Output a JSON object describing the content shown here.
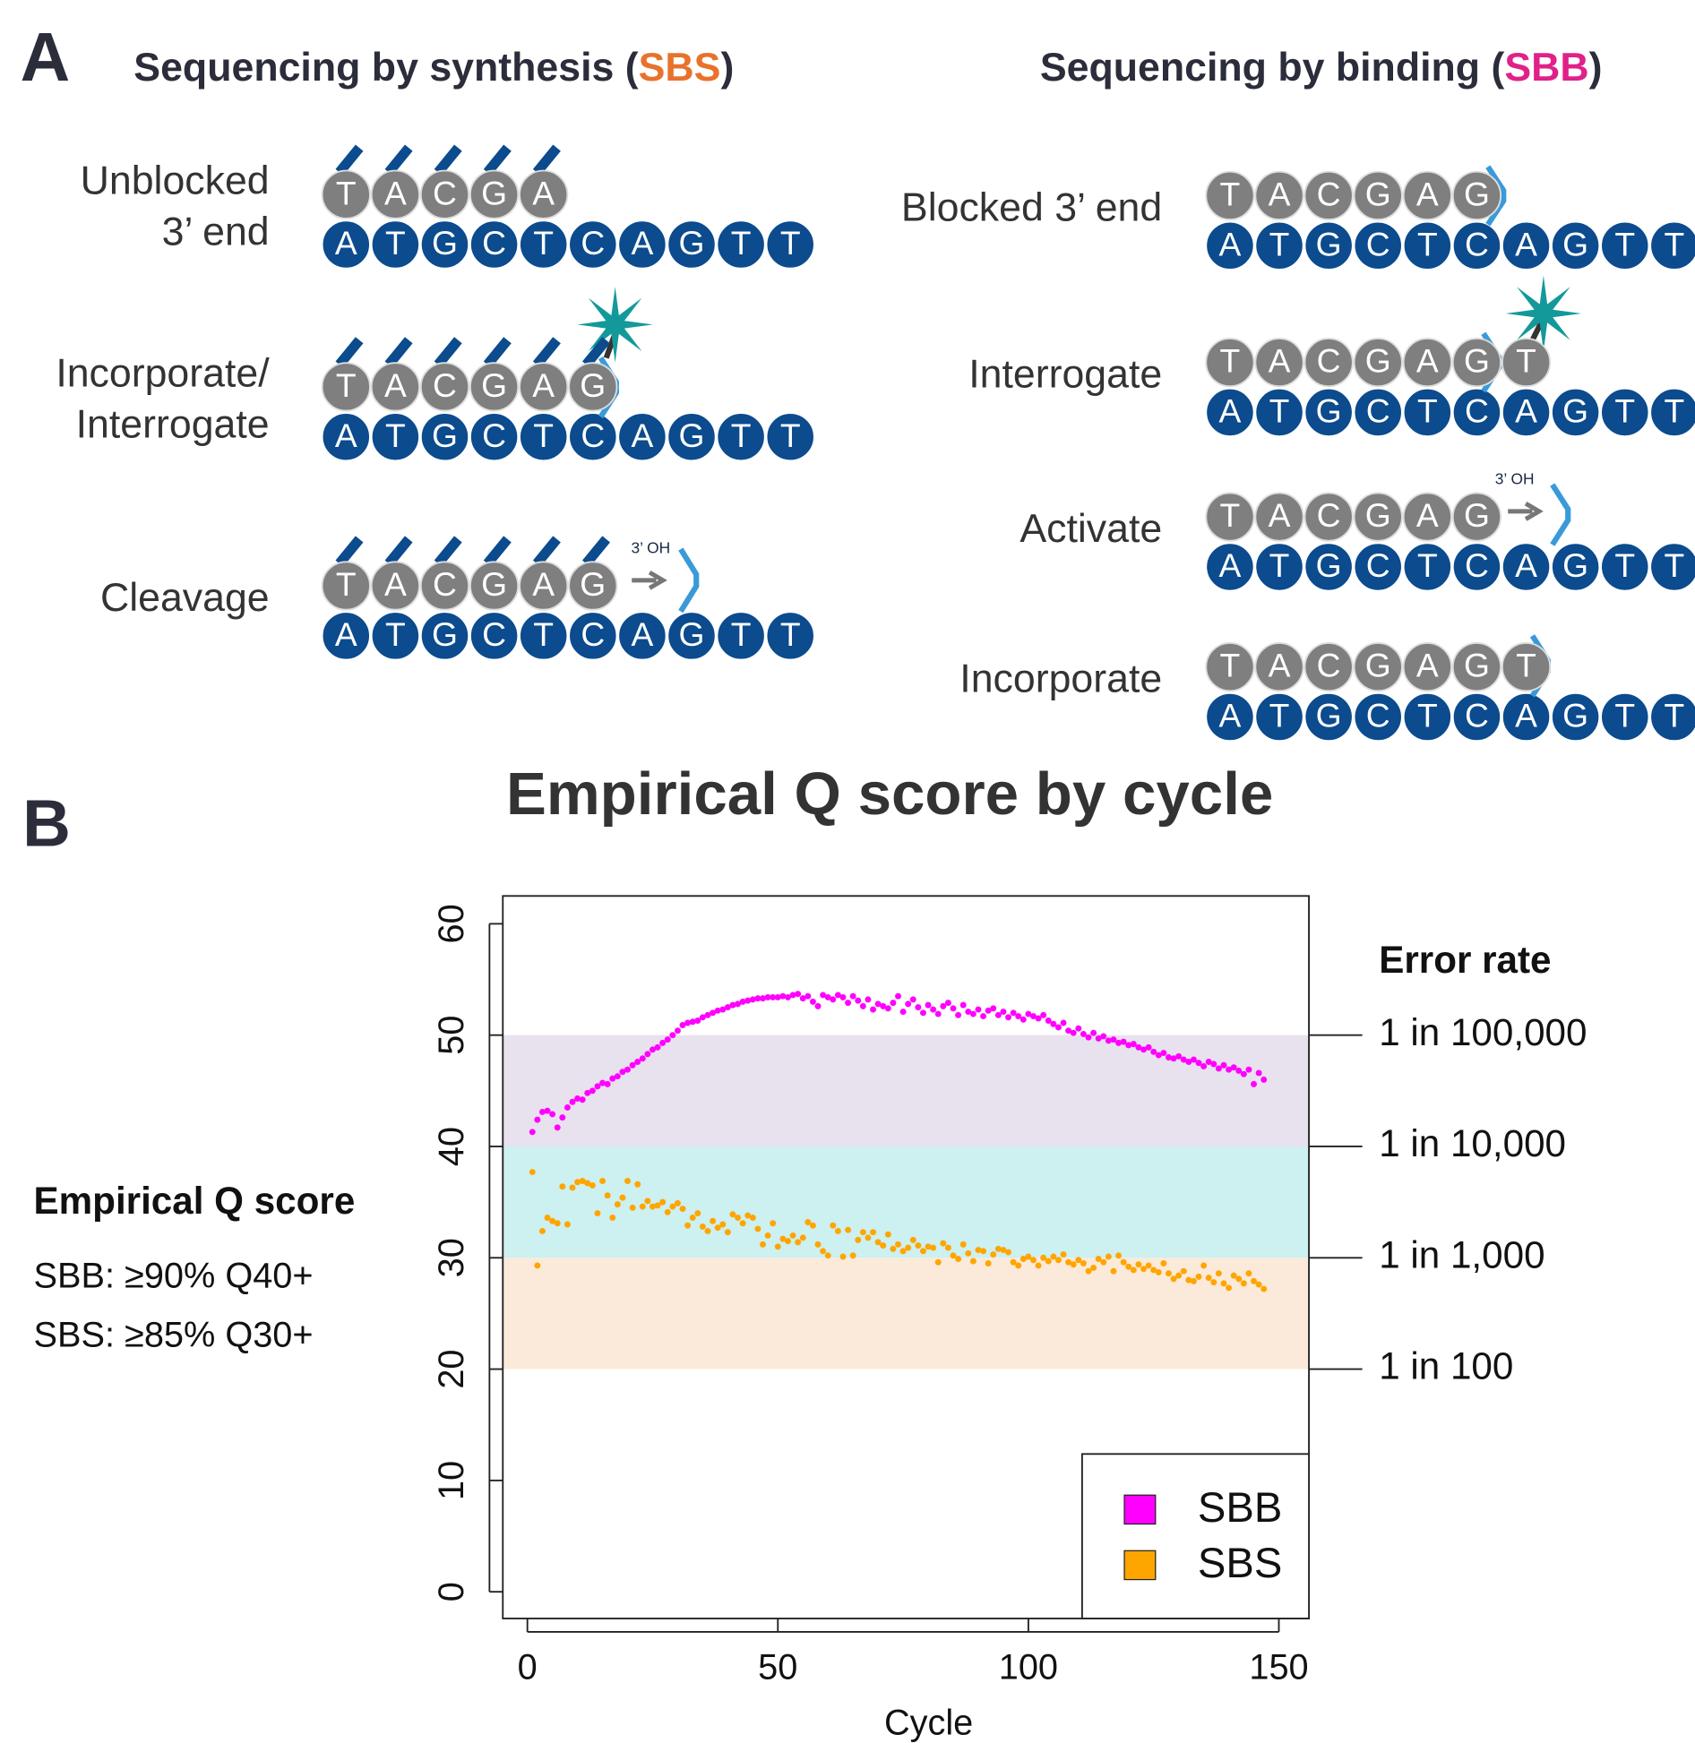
{
  "panel_a": {
    "label": "A",
    "sbs": {
      "heading": {
        "before": "Sequencing by synthesis (",
        "abbr": "SBS",
        "after": ")"
      },
      "steps": [
        {
          "label": [
            "Unblocked",
            "3’ end"
          ],
          "top": [
            "T",
            "A",
            "C",
            "G",
            "A"
          ],
          "bottom": [
            "A",
            "T",
            "G",
            "C",
            "T",
            "C",
            "A",
            "G",
            "T",
            "T"
          ]
        },
        {
          "label": [
            "Incorporate/",
            "Interrogate"
          ],
          "top": [
            "T",
            "A",
            "C",
            "G",
            "A",
            "G"
          ],
          "bottom": [
            "A",
            "T",
            "G",
            "C",
            "T",
            "C",
            "A",
            "G",
            "T",
            "T"
          ]
        },
        {
          "label": [
            "Cleavage"
          ],
          "top": [
            "T",
            "A",
            "C",
            "G",
            "A",
            "G"
          ],
          "bottom": [
            "A",
            "T",
            "G",
            "C",
            "T",
            "C",
            "A",
            "G",
            "T",
            "T"
          ],
          "oh": "3’ OH"
        }
      ]
    },
    "sbb": {
      "heading": {
        "before": "Sequencing by binding (",
        "abbr": "SBB",
        "after": ")"
      },
      "steps": [
        {
          "label": [
            "Blocked 3’ end"
          ],
          "top": [
            "T",
            "A",
            "C",
            "G",
            "A",
            "G"
          ],
          "bottom": [
            "A",
            "T",
            "G",
            "C",
            "T",
            "C",
            "A",
            "G",
            "T",
            "T"
          ]
        },
        {
          "label": [
            "Interrogate"
          ],
          "top": [
            "T",
            "A",
            "C",
            "G",
            "A",
            "G",
            "T"
          ],
          "bottom": [
            "A",
            "T",
            "G",
            "C",
            "T",
            "C",
            "A",
            "G",
            "T",
            "T"
          ]
        },
        {
          "label": [
            "Activate"
          ],
          "top": [
            "T",
            "A",
            "C",
            "G",
            "A",
            "G"
          ],
          "bottom": [
            "A",
            "T",
            "G",
            "C",
            "T",
            "C",
            "A",
            "G",
            "T",
            "T"
          ],
          "oh": "3’ OH"
        },
        {
          "label": [
            "Incorporate"
          ],
          "top": [
            "T",
            "A",
            "C",
            "G",
            "A",
            "G",
            "T"
          ],
          "bottom": [
            "A",
            "T",
            "G",
            "C",
            "T",
            "C",
            "A",
            "G",
            "T",
            "T"
          ]
        }
      ]
    }
  },
  "panel_b": {
    "label": "B",
    "note": {
      "title": "Empirical Q score",
      "lines": [
        "SBB: ≥90% Q40+",
        "SBS: ≥85% Q30+"
      ]
    }
  },
  "chart_data": {
    "type": "scatter",
    "title": "Empirical Q score by cycle",
    "x_label": "Cycle",
    "x": [
      1,
      2,
      3,
      4,
      5,
      6,
      7,
      8,
      9,
      10,
      11,
      12,
      13,
      14,
      15,
      16,
      17,
      18,
      19,
      20,
      21,
      22,
      23,
      24,
      25,
      26,
      27,
      28,
      29,
      30,
      31,
      32,
      33,
      34,
      35,
      36,
      37,
      38,
      39,
      40,
      41,
      42,
      43,
      44,
      45,
      46,
      47,
      48,
      49,
      50,
      51,
      52,
      53,
      54,
      55,
      56,
      57,
      58,
      59,
      60,
      61,
      62,
      63,
      64,
      65,
      66,
      67,
      68,
      69,
      70,
      71,
      72,
      73,
      74,
      75,
      76,
      77,
      78,
      79,
      80,
      81,
      82,
      83,
      84,
      85,
      86,
      87,
      88,
      89,
      90,
      91,
      92,
      93,
      94,
      95,
      96,
      97,
      98,
      99,
      100,
      101,
      102,
      103,
      104,
      105,
      106,
      107,
      108,
      109,
      110,
      111,
      112,
      113,
      114,
      115,
      116,
      117,
      118,
      119,
      120,
      121,
      122,
      123,
      124,
      125,
      126,
      127,
      128,
      129,
      130,
      131,
      132,
      133,
      134,
      135,
      136,
      137,
      138,
      139,
      140,
      141,
      142,
      143,
      144,
      145,
      146,
      147
    ],
    "series": [
      {
        "name": "SBB",
        "color": "#ff00ff",
        "values": [
          41.3,
          42.4,
          43.1,
          43.2,
          42.9,
          41.7,
          42.6,
          43.5,
          44.0,
          44.3,
          44.2,
          44.8,
          45.0,
          45.4,
          45.7,
          45.6,
          46.1,
          46.3,
          46.7,
          46.9,
          47.3,
          47.6,
          47.9,
          48.3,
          48.7,
          48.9,
          49.3,
          49.6,
          50.0,
          50.4,
          50.9,
          51.1,
          51.2,
          51.3,
          51.6,
          51.8,
          52.0,
          52.2,
          52.3,
          52.5,
          52.7,
          52.8,
          53.0,
          53.1,
          53.2,
          53.3,
          53.3,
          53.4,
          53.4,
          53.4,
          53.5,
          53.4,
          53.6,
          53.7,
          53.3,
          53.5,
          53.0,
          52.6,
          53.6,
          53.4,
          53.2,
          53.6,
          53.4,
          52.9,
          53.5,
          53.1,
          52.6,
          53.2,
          52.3,
          52.8,
          52.6,
          52.4,
          52.9,
          53.5,
          52.1,
          52.8,
          53.2,
          52.5,
          52.0,
          52.7,
          52.3,
          51.9,
          52.6,
          52.9,
          52.4,
          51.8,
          52.7,
          52.1,
          51.9,
          52.3,
          51.7,
          52.2,
          52.4,
          51.8,
          52.1,
          51.6,
          52.0,
          51.7,
          51.4,
          51.9,
          51.7,
          51.5,
          51.8,
          51.3,
          51.0,
          50.7,
          51.1,
          50.4,
          50.2,
          50.6,
          50.1,
          49.8,
          50.2,
          49.7,
          49.9,
          49.5,
          49.6,
          49.3,
          49.4,
          49.1,
          49.2,
          48.9,
          48.7,
          48.9,
          48.5,
          48.2,
          48.4,
          48.0,
          47.9,
          48.1,
          47.8,
          47.6,
          47.8,
          47.5,
          47.2,
          47.6,
          47.4,
          47.0,
          47.3,
          46.9,
          47.1,
          46.8,
          46.5,
          46.9,
          45.6,
          46.6,
          46.0
        ]
      },
      {
        "name": "SBS",
        "color": "#ffa500",
        "values": [
          37.7,
          29.3,
          32.4,
          33.6,
          33.3,
          33.1,
          36.4,
          33.0,
          36.3,
          36.8,
          36.9,
          36.7,
          36.5,
          34.0,
          36.9,
          35.6,
          33.6,
          34.8,
          35.4,
          36.9,
          34.5,
          36.6,
          34.6,
          35.1,
          34.6,
          34.7,
          35.0,
          34.1,
          34.6,
          34.9,
          34.4,
          32.9,
          33.6,
          34.0,
          32.8,
          32.4,
          33.3,
          32.7,
          33.0,
          32.3,
          33.9,
          33.6,
          33.1,
          33.8,
          33.6,
          32.6,
          31.2,
          32.0,
          33.1,
          31.0,
          31.7,
          31.5,
          32.0,
          31.4,
          31.8,
          33.2,
          32.9,
          31.2,
          30.6,
          30.2,
          32.9,
          32.4,
          30.1,
          32.5,
          30.2,
          31.6,
          32.3,
          31.8,
          32.3,
          31.4,
          31.1,
          32.1,
          30.8,
          31.2,
          30.6,
          30.9,
          31.6,
          31.1,
          30.6,
          31.0,
          30.9,
          29.6,
          31.3,
          30.9,
          30.2,
          29.9,
          31.2,
          30.4,
          29.7,
          30.7,
          30.6,
          29.5,
          30.3,
          30.8,
          30.7,
          30.5,
          29.6,
          29.3,
          29.9,
          30.1,
          29.8,
          29.3,
          30.0,
          29.7,
          30.1,
          29.8,
          30.3,
          29.6,
          29.4,
          29.8,
          29.5,
          28.8,
          29.1,
          29.9,
          29.6,
          30.1,
          28.8,
          30.2,
          29.6,
          29.2,
          28.9,
          29.4,
          29.0,
          29.3,
          28.9,
          28.7,
          29.5,
          28.6,
          28.1,
          28.4,
          28.8,
          28.0,
          27.9,
          28.3,
          29.3,
          28.2,
          27.8,
          28.6,
          27.7,
          27.3,
          28.4,
          28.1,
          27.7,
          28.6,
          27.9,
          27.6,
          27.2
        ]
      }
    ],
    "xlim": [
      -4.9,
      156
    ],
    "ylim": [
      -2.4,
      62.5
    ],
    "xticks": [
      0,
      50,
      100,
      150
    ],
    "yticks": [
      0,
      10,
      20,
      30,
      40,
      50,
      60
    ],
    "y2_label": "Error rate",
    "y2lim": [
      -2.4,
      62.5
    ],
    "y2ticks": [
      {
        "value": 20,
        "label": "1 in 100"
      },
      {
        "value": 30,
        "label": "1 in 1,000"
      },
      {
        "value": 40,
        "label": "1 in 10,000"
      },
      {
        "value": 50,
        "label": "1 in 100,000"
      }
    ],
    "bands": [
      {
        "from": 20,
        "to": 30,
        "color": "#fbeada"
      },
      {
        "from": 30,
        "to": 40,
        "color": "#cdf0f1"
      },
      {
        "from": 40,
        "to": 50,
        "color": "#e8e1ee"
      }
    ],
    "legend": "bottom-right"
  }
}
